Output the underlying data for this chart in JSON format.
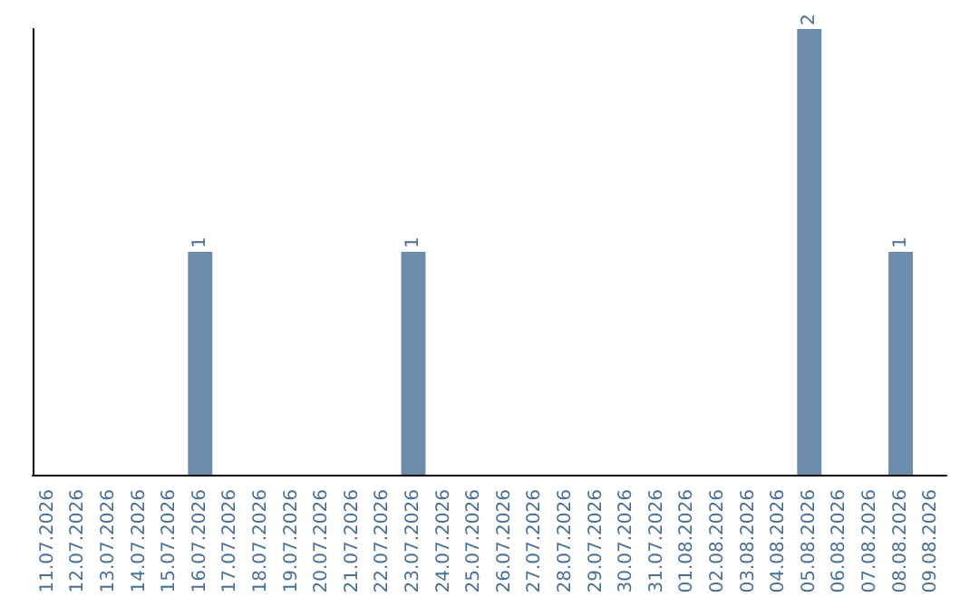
{
  "chart_data": {
    "type": "bar",
    "categories": [
      "11.07.2026",
      "12.07.2026",
      "13.07.2026",
      "14.07.2026",
      "15.07.2026",
      "16.07.2026",
      "17.07.2026",
      "18.07.2026",
      "19.07.2026",
      "20.07.2026",
      "21.07.2026",
      "22.07.2026",
      "23.07.2026",
      "24.07.2026",
      "25.07.2026",
      "26.07.2026",
      "27.07.2026",
      "28.07.2026",
      "29.07.2026",
      "30.07.2026",
      "31.07.2026",
      "01.08.2026",
      "02.08.2026",
      "03.08.2026",
      "04.08.2026",
      "05.08.2026",
      "06.08.2026",
      "07.08.2026",
      "08.08.2026",
      "09.08.2026"
    ],
    "values": [
      0,
      0,
      0,
      0,
      0,
      1,
      0,
      0,
      0,
      0,
      0,
      0,
      1,
      0,
      0,
      0,
      0,
      0,
      0,
      0,
      0,
      0,
      0,
      0,
      0,
      2,
      0,
      0,
      1,
      0
    ],
    "value_labels": [
      null,
      null,
      null,
      null,
      null,
      "1",
      null,
      null,
      null,
      null,
      null,
      null,
      "1",
      null,
      null,
      null,
      null,
      null,
      null,
      null,
      null,
      null,
      null,
      null,
      null,
      "2",
      null,
      null,
      "1",
      null
    ],
    "color": "#6b8cab",
    "grid": false,
    "tick_labels": "x"
  }
}
